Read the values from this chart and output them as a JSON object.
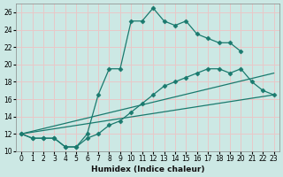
{
  "xlabel": "Humidex (Indice chaleur)",
  "background_color": "#cce8e4",
  "grid_color": "#e8c8c8",
  "line_color": "#1a7a6e",
  "xlim": [
    -0.5,
    23.5
  ],
  "ylim": [
    10,
    27
  ],
  "xticks": [
    0,
    1,
    2,
    3,
    4,
    5,
    6,
    7,
    8,
    9,
    10,
    11,
    12,
    13,
    14,
    15,
    16,
    17,
    18,
    19,
    20,
    21,
    22,
    23
  ],
  "yticks": [
    10,
    12,
    14,
    16,
    18,
    20,
    22,
    24,
    26
  ],
  "lines": [
    {
      "x": [
        0,
        1,
        2,
        3,
        4,
        5,
        6,
        7,
        8,
        9,
        10,
        11,
        12,
        13,
        14,
        15,
        16,
        17,
        18,
        19,
        20
      ],
      "y": [
        12,
        11.5,
        11.5,
        11.5,
        10.5,
        10.5,
        12,
        16.5,
        19.5,
        19.5,
        25,
        25,
        26.5,
        25,
        24.5,
        25,
        23.5,
        23,
        22.5,
        22.5,
        21.5
      ],
      "marker": true
    },
    {
      "x": [
        0,
        1,
        2,
        3,
        4,
        5,
        6,
        7,
        8,
        9,
        10,
        11,
        12,
        13,
        14,
        15,
        16,
        17,
        18,
        19,
        20,
        21,
        22,
        23
      ],
      "y": [
        12,
        11.5,
        11.5,
        11.5,
        10.5,
        10.5,
        11.5,
        12,
        13,
        13.5,
        14.5,
        15.5,
        16.5,
        17.5,
        18,
        18.5,
        19,
        19.5,
        19.5,
        19,
        19.5,
        18,
        17,
        16.5
      ],
      "marker": true
    },
    {
      "x": [
        0,
        23
      ],
      "y": [
        12,
        19
      ],
      "marker": false
    },
    {
      "x": [
        0,
        23
      ],
      "y": [
        12,
        16.5
      ],
      "marker": false
    }
  ]
}
